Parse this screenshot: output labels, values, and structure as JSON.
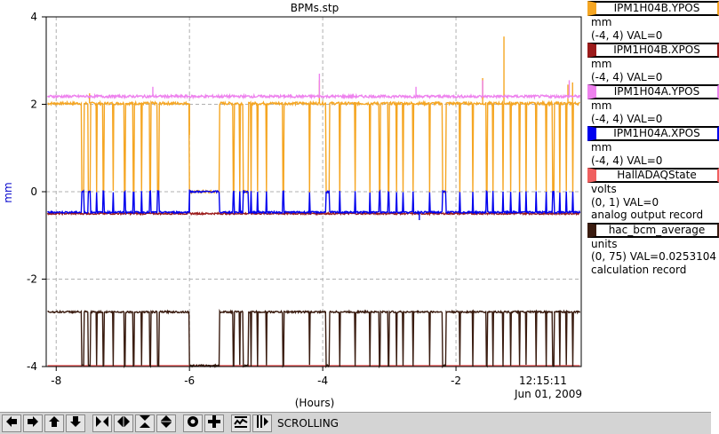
{
  "chart_data": {
    "type": "line",
    "title": "BPMs.stp",
    "ylabel": "mm",
    "xlabel": "(Hours)",
    "xlim": [
      -8.15,
      -0.12
    ],
    "ylim": [
      -4,
      4
    ],
    "x_ticks": [
      -8,
      -6,
      -4,
      -2
    ],
    "y_ticks": [
      4,
      2,
      0,
      -2,
      -4
    ],
    "grid": true,
    "time_stamp": [
      "12:15:11",
      "Jun 01, 2009"
    ],
    "series": [
      {
        "name": "IPM1H04B.YPOS",
        "color": "#f5a623",
        "base": 2.02,
        "drop": 0.0,
        "noise": 0.03,
        "spikes": [
          [
            -7.5,
            2.25
          ],
          [
            -4.05,
            2.55
          ],
          [
            -1.28,
            3.55
          ],
          [
            -0.32,
            2.45
          ],
          [
            -0.25,
            2.5
          ],
          [
            -1.6,
            2.6
          ],
          [
            -6.0,
            1.3
          ]
        ]
      },
      {
        "name": "IPM1H04B.XPOS",
        "color": "#9b1b1b",
        "base": -0.5,
        "drop": -0.5,
        "noise": 0.02,
        "spikes": []
      },
      {
        "name": "IPM1H04A.YPOS",
        "color": "#ee82ee",
        "base": 2.18,
        "drop": 2.18,
        "noise": 0.03,
        "spikes": [
          [
            -4.05,
            2.7
          ],
          [
            -2.6,
            2.4
          ],
          [
            -1.6,
            2.55
          ],
          [
            -0.3,
            2.55
          ],
          [
            -6.55,
            2.4
          ]
        ]
      },
      {
        "name": "IPM1H04A.XPOS",
        "color": "#0000ee",
        "base": -0.47,
        "drop": 0.0,
        "noise": 0.02,
        "spikes": [
          [
            -6.0,
            0.05
          ],
          [
            -2.55,
            -0.65
          ]
        ]
      },
      {
        "name": "HallADAQState",
        "color": "#f06060",
        "base": -3.98,
        "drop": -3.98,
        "noise": 0.0,
        "spikes": []
      },
      {
        "name": "hac_bcm_average",
        "color": "#3a1c10",
        "base": -2.75,
        "drop": -3.98,
        "noise": 0.02,
        "spikes": []
      }
    ],
    "beam_off_intervals": [
      [
        -7.62,
        -7.58
      ],
      [
        -7.52,
        -7.49
      ],
      [
        -7.4,
        -7.39
      ],
      [
        -7.3,
        -7.28
      ],
      [
        -7.15,
        -7.14
      ],
      [
        -6.98,
        -6.96
      ],
      [
        -6.85,
        -6.83
      ],
      [
        -6.72,
        -6.71
      ],
      [
        -6.6,
        -6.58
      ],
      [
        -6.48,
        -6.46
      ],
      [
        -6.0,
        -5.55
      ],
      [
        -5.35,
        -5.33
      ],
      [
        -5.25,
        -5.24
      ],
      [
        -5.2,
        -5.12
      ],
      [
        -5.08,
        -5.07
      ],
      [
        -4.98,
        -4.97
      ],
      [
        -4.85,
        -4.84
      ],
      [
        -4.6,
        -4.58
      ],
      [
        -4.2,
        -4.19
      ],
      [
        -3.95,
        -3.9
      ],
      [
        -3.75,
        -3.74
      ],
      [
        -3.52,
        -3.51
      ],
      [
        -3.3,
        -3.29
      ],
      [
        -3.15,
        -3.14
      ],
      [
        -3.02,
        -3.0
      ],
      [
        -2.9,
        -2.89
      ],
      [
        -2.8,
        -2.79
      ],
      [
        -2.65,
        -2.64
      ],
      [
        -2.4,
        -2.39
      ],
      [
        -2.2,
        -2.15
      ],
      [
        -1.95,
        -1.94
      ],
      [
        -1.75,
        -1.74
      ],
      [
        -1.55,
        -1.53
      ],
      [
        -1.45,
        -1.44
      ],
      [
        -1.3,
        -1.29
      ],
      [
        -1.18,
        -1.17
      ],
      [
        -1.05,
        -1.04
      ],
      [
        -0.95,
        -0.94
      ],
      [
        -0.8,
        -0.79
      ],
      [
        -0.65,
        -0.64
      ],
      [
        -0.55,
        -0.53
      ],
      [
        -0.45,
        -0.44
      ],
      [
        -0.35,
        -0.34
      ],
      [
        -0.25,
        -0.24
      ]
    ],
    "ranges_text": [
      "(-4, 4) VAL=0",
      "(-4, 4) VAL=0",
      "(-4, 4) VAL=0",
      "(-4, 4) VAL=0",
      "(0, 1) VAL=0",
      "(0, 75) VAL=0.0253104"
    ]
  },
  "legend": {
    "items": [
      {
        "name": "IPM1H04B.YPOS",
        "color": "#f5a623",
        "lines": [
          "mm",
          "(-4, 4) VAL=0"
        ]
      },
      {
        "name": "IPM1H04B.XPOS",
        "color": "#9b1b1b",
        "lines": [
          "mm",
          "(-4, 4) VAL=0"
        ]
      },
      {
        "name": "IPM1H04A.YPOS",
        "color": "#ee82ee",
        "lines": [
          "mm",
          "(-4, 4) VAL=0"
        ]
      },
      {
        "name": "IPM1H04A.XPOS",
        "color": "#0000ee",
        "lines": [
          "mm",
          "(-4, 4) VAL=0"
        ]
      },
      {
        "name": "HallADAQState",
        "color": "#f06060",
        "lines": [
          "volts",
          "(0, 1) VAL=0",
          "analog output record"
        ]
      },
      {
        "name": "hac_bcm_average",
        "color": "#3a1c10",
        "lines": [
          "units",
          "(0, 75) VAL=0.0253104",
          "calculation record"
        ]
      }
    ]
  },
  "toolbar": {
    "buttons": [
      {
        "name": "pan-left-button",
        "icon": "arrow-left-icon"
      },
      {
        "name": "pan-right-button",
        "icon": "arrow-right-icon"
      },
      {
        "name": "pan-up-button",
        "icon": "arrow-up-icon"
      },
      {
        "name": "pan-down-button",
        "icon": "arrow-down-icon"
      },
      {
        "name": "zoom-in-time-button",
        "icon": "zoom-in-time-icon"
      },
      {
        "name": "zoom-out-time-button",
        "icon": "zoom-out-time-icon"
      },
      {
        "name": "zoom-in-value-button",
        "icon": "zoom-in-value-icon"
      },
      {
        "name": "zoom-out-value-button",
        "icon": "zoom-out-value-icon"
      },
      {
        "name": "auto-scale-button",
        "icon": "circle-icon"
      },
      {
        "name": "add-pv-button",
        "icon": "plus-icon"
      },
      {
        "name": "config-button",
        "icon": "stripchart-icon"
      },
      {
        "name": "scroll-toggle-button",
        "icon": "scroll-icon"
      }
    ],
    "status": "SCROLLING"
  }
}
